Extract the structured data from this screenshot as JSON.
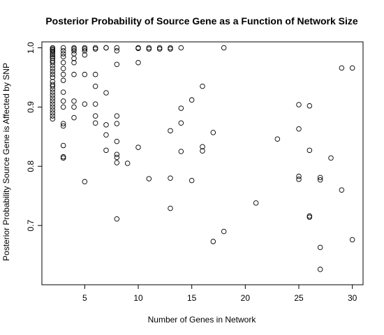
{
  "chart_data": {
    "type": "scatter",
    "title": "Posterior Probability of Source Gene as a Function of Network Size",
    "xlabel": "Number of Genes in Network",
    "ylabel": "Posterior Probability Source Gene is Affected by SNP",
    "xlim": [
      1,
      31
    ],
    "ylim": [
      0.6,
      1.01
    ],
    "x_ticks": [
      5,
      10,
      15,
      20,
      25,
      30
    ],
    "y_ticks": [
      0.7,
      0.8,
      0.9,
      1.0
    ],
    "y_tick_labels": [
      "0.7",
      "0.8",
      "0.9",
      "1.0"
    ],
    "grid": false,
    "marker": "open-circle",
    "colors": {
      "points": "#000000",
      "frame": "#000000",
      "background": "#ffffff"
    },
    "points": [
      [
        2,
        1.0
      ],
      [
        2,
        0.998
      ],
      [
        2,
        0.996
      ],
      [
        2,
        0.994
      ],
      [
        2,
        0.991
      ],
      [
        2,
        0.988
      ],
      [
        2,
        0.985
      ],
      [
        2,
        0.982
      ],
      [
        2,
        0.978
      ],
      [
        2,
        0.975
      ],
      [
        2,
        0.97
      ],
      [
        2,
        0.965
      ],
      [
        2,
        0.96
      ],
      [
        2,
        0.955
      ],
      [
        2,
        0.95
      ],
      [
        2,
        0.943
      ],
      [
        2,
        0.938
      ],
      [
        2,
        0.935
      ],
      [
        2,
        0.93
      ],
      [
        2,
        0.925
      ],
      [
        2,
        0.92
      ],
      [
        2,
        0.915
      ],
      [
        2,
        0.91
      ],
      [
        2,
        0.905
      ],
      [
        2,
        0.9
      ],
      [
        2,
        0.895
      ],
      [
        2,
        0.89
      ],
      [
        2,
        0.885
      ],
      [
        2,
        0.88
      ],
      [
        3,
        1.0
      ],
      [
        3,
        0.995
      ],
      [
        3,
        0.99
      ],
      [
        3,
        0.985
      ],
      [
        3,
        0.975
      ],
      [
        3,
        0.965
      ],
      [
        3,
        0.955
      ],
      [
        3,
        0.945
      ],
      [
        3,
        0.925
      ],
      [
        3,
        0.91
      ],
      [
        3,
        0.9
      ],
      [
        3,
        0.872
      ],
      [
        3,
        0.868
      ],
      [
        3,
        0.835
      ],
      [
        3,
        0.816
      ],
      [
        3,
        0.814
      ],
      [
        4,
        1.0
      ],
      [
        4,
        0.998
      ],
      [
        4,
        0.995
      ],
      [
        4,
        0.99
      ],
      [
        4,
        0.982
      ],
      [
        4,
        0.975
      ],
      [
        4,
        0.955
      ],
      [
        4,
        0.91
      ],
      [
        4,
        0.9
      ],
      [
        4,
        0.882
      ],
      [
        5,
        1.0
      ],
      [
        5,
        0.998
      ],
      [
        5,
        0.995
      ],
      [
        5,
        0.988
      ],
      [
        5,
        0.955
      ],
      [
        5,
        0.905
      ],
      [
        5,
        0.774
      ],
      [
        6,
        1.0
      ],
      [
        6,
        0.998
      ],
      [
        6,
        0.955
      ],
      [
        6,
        0.935
      ],
      [
        6,
        0.905
      ],
      [
        6,
        0.885
      ],
      [
        6,
        0.873
      ],
      [
        7,
        1.0
      ],
      [
        7,
        1.0
      ],
      [
        7,
        0.924
      ],
      [
        7,
        0.87
      ],
      [
        7,
        0.853
      ],
      [
        7,
        0.827
      ],
      [
        8,
        1.0
      ],
      [
        8,
        0.995
      ],
      [
        8,
        0.972
      ],
      [
        8,
        0.885
      ],
      [
        8,
        0.872
      ],
      [
        8,
        0.842
      ],
      [
        8,
        0.82
      ],
      [
        8,
        0.815
      ],
      [
        8,
        0.806
      ],
      [
        8,
        0.711
      ],
      [
        9,
        0.805
      ],
      [
        10,
        1.0
      ],
      [
        10,
        0.999
      ],
      [
        10,
        0.975
      ],
      [
        10,
        0.832
      ],
      [
        11,
        1.0
      ],
      [
        11,
        0.998
      ],
      [
        11,
        0.779
      ],
      [
        12,
        1.0
      ],
      [
        12,
        0.998
      ],
      [
        13,
        1.0
      ],
      [
        13,
        0.998
      ],
      [
        13,
        0.86
      ],
      [
        13,
        0.78
      ],
      [
        13,
        0.729
      ],
      [
        14,
        1.0
      ],
      [
        14,
        0.898
      ],
      [
        14,
        0.873
      ],
      [
        14,
        0.825
      ],
      [
        15,
        0.912
      ],
      [
        15,
        0.776
      ],
      [
        16,
        0.935
      ],
      [
        16,
        0.833
      ],
      [
        16,
        0.826
      ],
      [
        17,
        0.857
      ],
      [
        17,
        0.673
      ],
      [
        18,
        1.0
      ],
      [
        18,
        0.69
      ],
      [
        21,
        0.738
      ],
      [
        23,
        0.846
      ],
      [
        25,
        0.904
      ],
      [
        25,
        0.863
      ],
      [
        25,
        0.783
      ],
      [
        25,
        0.778
      ],
      [
        26,
        0.902
      ],
      [
        26,
        0.827
      ],
      [
        26,
        0.716
      ],
      [
        26,
        0.714
      ],
      [
        27,
        0.781
      ],
      [
        27,
        0.777
      ],
      [
        27,
        0.663
      ],
      [
        27,
        0.626
      ],
      [
        28,
        0.814
      ],
      [
        29,
        0.966
      ],
      [
        29,
        0.76
      ],
      [
        30,
        0.966
      ],
      [
        30,
        0.676
      ]
    ]
  }
}
